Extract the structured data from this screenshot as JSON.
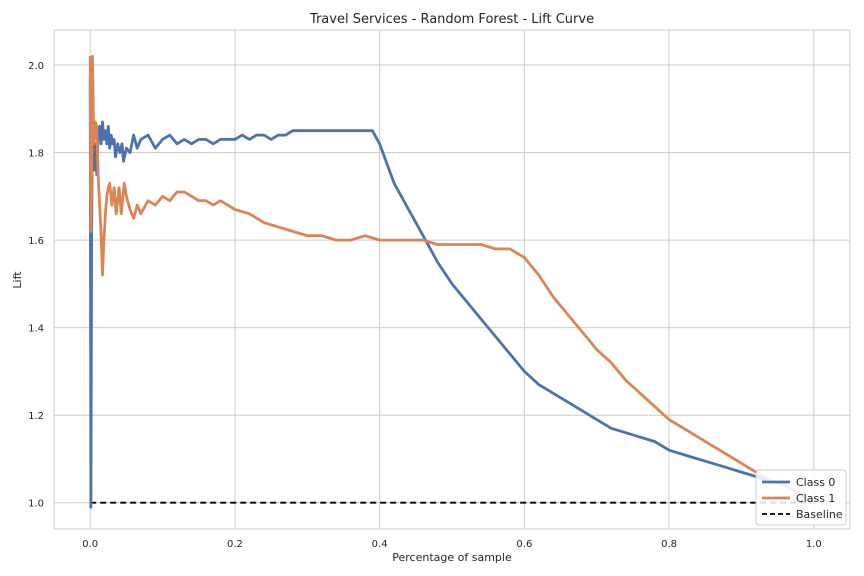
{
  "chart_data": {
    "type": "line",
    "title": "Travel Services - Random Forest - Lift Curve",
    "xlabel": "Percentage of sample",
    "ylabel": "Lift",
    "xlim": [
      -0.05,
      1.05
    ],
    "ylim": [
      0.94,
      2.08
    ],
    "xticks": [
      "0.0",
      "0.2",
      "0.4",
      "0.6",
      "0.8",
      "1.0"
    ],
    "xtick_values": [
      0,
      0.2,
      0.4,
      0.6,
      0.8,
      1.0
    ],
    "yticks": [
      "1.0",
      "1.2",
      "1.4",
      "1.6",
      "1.8",
      "2.0"
    ],
    "ytick_values": [
      1.0,
      1.2,
      1.4,
      1.6,
      1.8,
      2.0
    ],
    "grid": true,
    "legend_position": "bottom-right",
    "series": [
      {
        "name": "Class 0",
        "color": "#4c72b0",
        "style": "solid",
        "x": [
          0.0,
          0.001,
          0.002,
          0.003,
          0.005,
          0.007,
          0.009,
          0.011,
          0.013,
          0.015,
          0.017,
          0.019,
          0.021,
          0.023,
          0.025,
          0.027,
          0.029,
          0.031,
          0.033,
          0.035,
          0.038,
          0.041,
          0.044,
          0.046,
          0.05,
          0.055,
          0.06,
          0.065,
          0.07,
          0.08,
          0.09,
          0.1,
          0.11,
          0.12,
          0.13,
          0.14,
          0.15,
          0.16,
          0.17,
          0.18,
          0.19,
          0.2,
          0.21,
          0.22,
          0.23,
          0.24,
          0.25,
          0.26,
          0.27,
          0.28,
          0.29,
          0.3,
          0.32,
          0.34,
          0.36,
          0.38,
          0.39,
          0.4,
          0.42,
          0.44,
          0.46,
          0.48,
          0.5,
          0.52,
          0.54,
          0.56,
          0.58,
          0.6,
          0.62,
          0.64,
          0.66,
          0.68,
          0.7,
          0.72,
          0.74,
          0.76,
          0.78,
          0.8,
          0.82,
          0.84,
          0.86,
          0.88,
          0.9,
          0.92,
          0.94,
          0.96,
          0.98,
          1.0
        ],
        "values": [
          1.97,
          0.99,
          1.62,
          1.85,
          1.76,
          1.82,
          1.75,
          1.84,
          1.86,
          1.82,
          1.87,
          1.83,
          1.85,
          1.82,
          1.86,
          1.81,
          1.84,
          1.82,
          1.83,
          1.79,
          1.82,
          1.8,
          1.82,
          1.78,
          1.81,
          1.8,
          1.84,
          1.81,
          1.83,
          1.84,
          1.81,
          1.83,
          1.84,
          1.82,
          1.83,
          1.82,
          1.83,
          1.83,
          1.82,
          1.83,
          1.83,
          1.83,
          1.84,
          1.83,
          1.84,
          1.84,
          1.83,
          1.84,
          1.84,
          1.85,
          1.85,
          1.85,
          1.85,
          1.85,
          1.85,
          1.85,
          1.85,
          1.82,
          1.73,
          1.67,
          1.61,
          1.55,
          1.5,
          1.46,
          1.42,
          1.38,
          1.34,
          1.3,
          1.27,
          1.25,
          1.23,
          1.21,
          1.19,
          1.17,
          1.16,
          1.15,
          1.14,
          1.12,
          1.11,
          1.1,
          1.09,
          1.08,
          1.07,
          1.06,
          1.05,
          1.04,
          1.02,
          1.0
        ]
      },
      {
        "name": "Class 1",
        "color": "#dd8452",
        "style": "solid",
        "x": [
          0.0,
          0.001,
          0.002,
          0.003,
          0.005,
          0.007,
          0.009,
          0.011,
          0.013,
          0.015,
          0.017,
          0.019,
          0.021,
          0.023,
          0.025,
          0.027,
          0.03,
          0.033,
          0.036,
          0.04,
          0.043,
          0.047,
          0.05,
          0.055,
          0.06,
          0.065,
          0.07,
          0.08,
          0.09,
          0.1,
          0.11,
          0.12,
          0.13,
          0.14,
          0.15,
          0.16,
          0.17,
          0.18,
          0.2,
          0.22,
          0.24,
          0.26,
          0.28,
          0.3,
          0.32,
          0.34,
          0.36,
          0.38,
          0.4,
          0.42,
          0.44,
          0.46,
          0.48,
          0.5,
          0.52,
          0.54,
          0.56,
          0.58,
          0.6,
          0.62,
          0.64,
          0.66,
          0.68,
          0.7,
          0.72,
          0.74,
          0.76,
          0.78,
          0.8,
          0.82,
          0.84,
          0.86,
          0.88,
          0.9,
          0.92,
          0.94,
          0.96,
          0.98,
          1.0
        ],
        "values": [
          2.02,
          1.62,
          1.76,
          2.02,
          1.82,
          1.87,
          1.86,
          1.75,
          1.68,
          1.62,
          1.52,
          1.6,
          1.66,
          1.7,
          1.72,
          1.73,
          1.68,
          1.72,
          1.66,
          1.72,
          1.66,
          1.73,
          1.7,
          1.67,
          1.65,
          1.68,
          1.66,
          1.69,
          1.68,
          1.7,
          1.69,
          1.71,
          1.71,
          1.7,
          1.69,
          1.69,
          1.68,
          1.69,
          1.67,
          1.66,
          1.64,
          1.63,
          1.62,
          1.61,
          1.61,
          1.6,
          1.6,
          1.61,
          1.6,
          1.6,
          1.6,
          1.6,
          1.59,
          1.59,
          1.59,
          1.59,
          1.58,
          1.58,
          1.56,
          1.52,
          1.47,
          1.43,
          1.39,
          1.35,
          1.32,
          1.28,
          1.25,
          1.22,
          1.19,
          1.17,
          1.15,
          1.13,
          1.11,
          1.09,
          1.07,
          1.05,
          1.04,
          1.02,
          1.0
        ]
      },
      {
        "name": "Baseline",
        "color": "#000000",
        "style": "dashed",
        "x": [
          0.0,
          1.0
        ],
        "values": [
          1.0,
          1.0
        ]
      }
    ]
  }
}
